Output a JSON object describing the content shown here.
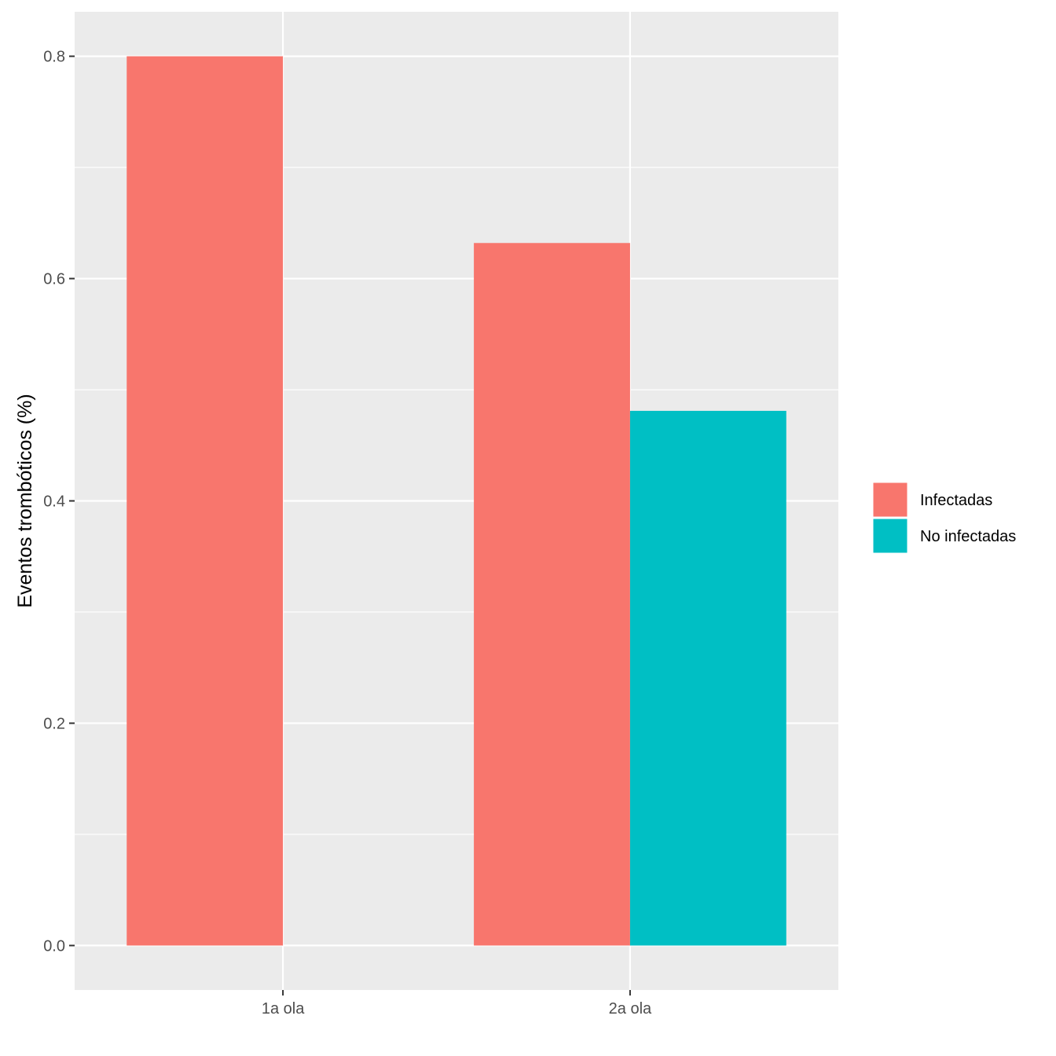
{
  "chart_data": {
    "type": "bar",
    "title": "",
    "xlabel": "",
    "ylabel": "Eventos trombóticos (%)",
    "categories": [
      "1a ola",
      "2a ola"
    ],
    "series": [
      {
        "name": "Infectadas",
        "color": "#F8766D",
        "values": [
          0.8,
          0.632
        ]
      },
      {
        "name": "No infectadas",
        "color": "#00BFC4",
        "values": [
          null,
          0.481
        ]
      }
    ],
    "ylim": [
      -0.04,
      0.84
    ],
    "yticks": [
      0.0,
      0.2,
      0.4,
      0.6,
      0.8
    ],
    "ytick_labels": [
      "0.0",
      "0.2",
      "0.4",
      "0.6",
      "0.8"
    ],
    "grid": true,
    "legend_position": "right",
    "panel_background": "#EBEBEB"
  }
}
